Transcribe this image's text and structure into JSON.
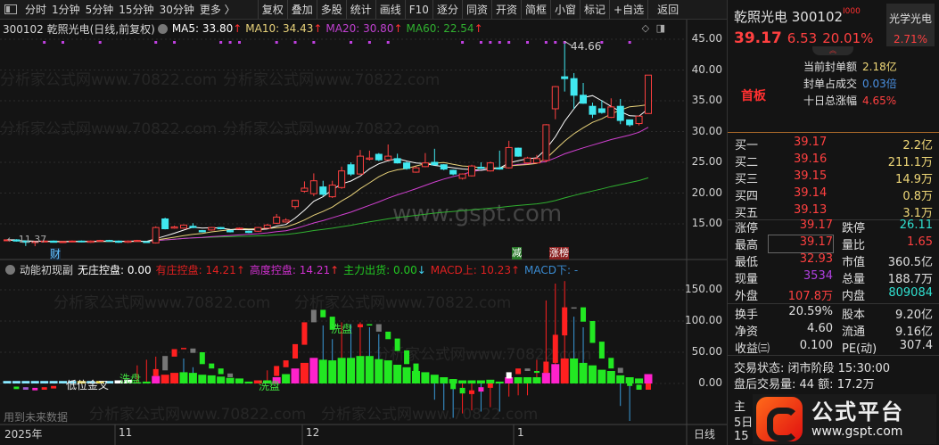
{
  "toolbar": {
    "tabs": [
      "分时",
      "1分钟",
      "5分钟",
      "15分钟",
      "30分钟",
      "更多 〉"
    ],
    "buttons": [
      "复权",
      "叠加",
      "多股",
      "统计",
      "画线",
      "F10",
      "逐分",
      "同资",
      "开资",
      "简框",
      "小窗",
      "标记",
      "+自选",
      "返回"
    ]
  },
  "main_header": {
    "title": "300102 乾照光电(日线,前复权)",
    "ma5": "MA5: 33.80",
    "ma10": "MA10: 34.43",
    "ma20": "MA20: 30.80",
    "ma60": "MA60: 22.54",
    "up_arrow": "↑"
  },
  "indicator_header": {
    "name": "动能初现副",
    "wu": "无庄控盘: 0.00",
    "you": "有庄控盘: 14.21",
    "gao": "高度控盘: 14.21",
    "chu": "主力出货: 0.00",
    "macd_up": "MACD上: 10.23",
    "macd_down": "MACD下: -",
    "up_arrow": "↑",
    "down_arrow": "↓"
  },
  "annotations": {
    "high_label": "44.66",
    "low_label": "← 11.37",
    "cai": "财",
    "jian": "减",
    "zhangbang": "涨榜",
    "dijinjiao": "低位金叉",
    "xipan": "洗盘",
    "future": "用到未来数据",
    "watermark": "分析家公式网www.70822.com",
    "center_watermark": "www.gspt.com"
  },
  "price_axis": [
    "45.00",
    "40.00",
    "35.00",
    "30.00",
    "25.00",
    "20.00",
    "15.00"
  ],
  "ind_axis": [
    "150.00",
    "100.00",
    "50.00",
    "0.00"
  ],
  "x_axis": {
    "labels": [
      "2025年",
      "11",
      "12",
      "1"
    ],
    "period": "日线"
  },
  "quote_panel": {
    "name": "乾照光电 300102",
    "badge": "I000",
    "sector": "光学光电",
    "sector_change": "2.71%",
    "price": "39.17",
    "change": "6.53",
    "change_pct": "20.01%",
    "board_tag": "首板",
    "seal_rows": [
      {
        "label": "当前封单额",
        "value": "2.18亿",
        "color": "#f0d878"
      },
      {
        "label": "封单占成交",
        "value": "0.03倍",
        "color": "#4a90e2"
      },
      {
        "label": "十日总涨幅",
        "value": "4.65%",
        "color": "#ff4040"
      }
    ],
    "bids": [
      {
        "label": "买一",
        "price": "39.17",
        "vol": "2.2亿"
      },
      {
        "label": "买二",
        "price": "39.16",
        "vol": "211.1万"
      },
      {
        "label": "买三",
        "price": "39.15",
        "vol": "14.9万"
      },
      {
        "label": "买四",
        "price": "39.14",
        "vol": "0.8万"
      },
      {
        "label": "买五",
        "price": "39.13",
        "vol": "3.1万"
      }
    ],
    "quotes": [
      {
        "l1": "涨停",
        "v1": "39.17",
        "c1": "#ff4040",
        "l2": "跌停",
        "v2": "26.11",
        "c2": "#30e0d0"
      },
      {
        "l1": "最高",
        "v1": "39.17",
        "c1": "#ff4040",
        "l2": "量比",
        "v2": "1.65",
        "c2": "#ff4040"
      },
      {
        "l1": "最低",
        "v1": "32.93",
        "c1": "#ff4040",
        "l2": "市值",
        "v2": "360.5亿",
        "c2": "#e0e0e0"
      },
      {
        "l1": "现量",
        "v1": "3534",
        "c1": "#b040e0",
        "l2": "总量",
        "v2": "188.7万",
        "c2": "#e0e0e0"
      },
      {
        "l1": "外盘",
        "v1": "107.8万",
        "c1": "#ff4040",
        "l2": "内盘",
        "v2": "809084",
        "c2": "#30e0d0"
      }
    ],
    "fundamentals": [
      {
        "l1": "换手",
        "v1": "20.59%",
        "l2": "股本",
        "v2": "9.20亿"
      },
      {
        "l1": "净资",
        "v1": "4.60",
        "l2": "流通",
        "v2": "9.16亿"
      },
      {
        "l1": "收益㈢",
        "v1": "0.100",
        "l2": "PE(动)",
        "v2": "307.4"
      }
    ],
    "trade_status": "交易状态: 闭市阶段 15:30:00",
    "after_hours": "盘后交易量: 44  额: 17.2万",
    "partial_rows": [
      "主",
      "5日",
      "15"
    ]
  },
  "logo": {
    "name": "公式平台",
    "url": "www.gspt.com"
  },
  "chart_data": {
    "type": "candlestick",
    "price_ylim": [
      11,
      46
    ],
    "indicator_ylim": [
      -65,
      165
    ],
    "colors": {
      "up": "#ff4040",
      "down": "#40e8f0",
      "ma5": "#ffffff",
      "ma10": "#e8d27a",
      "ma20": "#d040d0",
      "ma60": "#30b030"
    },
    "ohlc": [
      [
        12.3,
        12.5,
        12.2,
        12.4
      ],
      [
        12.4,
        12.5,
        12.1,
        12.2
      ],
      [
        12.2,
        12.3,
        11.4,
        12.0
      ],
      [
        12.0,
        12.2,
        11.37,
        12.1
      ],
      [
        12.1,
        12.3,
        12.0,
        12.2
      ],
      [
        12.2,
        12.3,
        12.0,
        12.0
      ],
      [
        12.0,
        12.2,
        11.9,
        12.1
      ],
      [
        12.1,
        12.3,
        12.0,
        12.2
      ],
      [
        12.2,
        12.3,
        12.0,
        12.1
      ],
      [
        12.0,
        12.3,
        11.9,
        12.2
      ],
      [
        12.2,
        12.4,
        12.1,
        12.3
      ],
      [
        12.3,
        12.4,
        12.1,
        12.2
      ],
      [
        12.2,
        12.3,
        11.9,
        12.0
      ],
      [
        12.0,
        12.3,
        11.9,
        12.2
      ],
      [
        12.2,
        12.4,
        12.1,
        12.3
      ],
      [
        12.1,
        12.2,
        11.9,
        12.0
      ],
      [
        11.9,
        14.6,
        11.8,
        14.4
      ],
      [
        15.8,
        16.0,
        14.1,
        14.2
      ],
      [
        14.3,
        14.7,
        14.2,
        14.5
      ],
      [
        14.3,
        14.9,
        14.2,
        14.8
      ],
      [
        14.6,
        15.1,
        14.3,
        14.4
      ],
      [
        13.9,
        14.0,
        13.6,
        13.7
      ],
      [
        14.0,
        14.5,
        13.9,
        14.4
      ],
      [
        14.4,
        14.5,
        14.1,
        14.2
      ],
      [
        13.9,
        14.0,
        13.6,
        13.7
      ],
      [
        14.2,
        14.4,
        14.1,
        14.3
      ],
      [
        13.8,
        13.9,
        13.5,
        13.6
      ],
      [
        13.8,
        14.5,
        13.7,
        14.4
      ],
      [
        14.3,
        15.0,
        14.2,
        14.8
      ],
      [
        15.1,
        16.6,
        15.0,
        16.1
      ],
      [
        15.3,
        15.9,
        15.2,
        15.6
      ],
      [
        17.8,
        18.9,
        17.4,
        18.8
      ],
      [
        20.3,
        21.9,
        20.1,
        20.8
      ],
      [
        19.9,
        23.2,
        19.5,
        22.0
      ],
      [
        21.0,
        22.0,
        19.5,
        19.8
      ],
      [
        19.4,
        22.0,
        19.2,
        21.3
      ],
      [
        20.9,
        24.3,
        20.7,
        23.6
      ],
      [
        24.6,
        25.0,
        22.8,
        23.1
      ],
      [
        23.1,
        27.0,
        23.0,
        26.0
      ],
      [
        25.5,
        26.9,
        25.3,
        25.7
      ],
      [
        26.3,
        26.5,
        25.2,
        25.4
      ],
      [
        25.4,
        27.9,
        25.3,
        26.0
      ],
      [
        25.6,
        26.4,
        24.8,
        24.9
      ],
      [
        24.9,
        25.1,
        23.8,
        24.0
      ],
      [
        23.4,
        24.3,
        23.3,
        24.1
      ],
      [
        24.3,
        26.5,
        24.2,
        24.9
      ],
      [
        25.0,
        27.2,
        24.5,
        24.6
      ],
      [
        24.6,
        24.7,
        23.7,
        23.9
      ],
      [
        23.7,
        23.8,
        22.9,
        23.1
      ],
      [
        22.4,
        23.2,
        22.2,
        23.1
      ],
      [
        22.8,
        24.6,
        22.7,
        24.4
      ],
      [
        24.2,
        25.0,
        23.9,
        24.0
      ],
      [
        23.6,
        25.1,
        23.5,
        24.9
      ],
      [
        24.1,
        26.9,
        23.8,
        23.9
      ],
      [
        24.1,
        28.5,
        24.0,
        27.4
      ],
      [
        27.3,
        27.4,
        25.9,
        26.0
      ],
      [
        24.9,
        25.9,
        24.7,
        25.7
      ],
      [
        24.9,
        26.2,
        24.8,
        25.6
      ],
      [
        25.3,
        31.2,
        25.0,
        31.1
      ],
      [
        33.7,
        37.4,
        32.0,
        37.3
      ],
      [
        38.9,
        44.66,
        36.5,
        38.6
      ],
      [
        38.6,
        39.5,
        33.7,
        35.9
      ],
      [
        35.9,
        37.9,
        34.5,
        34.6
      ],
      [
        34.1,
        34.7,
        32.2,
        32.8
      ],
      [
        33.7,
        35.1,
        32.9,
        33.1
      ],
      [
        32.3,
        35.4,
        32.2,
        34.0
      ],
      [
        34.1,
        35.3,
        31.2,
        31.8
      ],
      [
        31.9,
        31.9,
        30.8,
        31.1
      ],
      [
        31.3,
        32.5,
        31.0,
        32.5
      ],
      [
        32.93,
        39.17,
        32.93,
        39.17
      ]
    ],
    "top_markers": [
      4,
      6,
      10,
      16,
      18,
      23,
      24,
      25,
      29,
      31,
      33,
      37,
      39,
      41,
      49,
      51,
      52,
      53,
      54,
      56,
      58,
      59,
      60,
      64,
      67
    ],
    "marker_color": "#c040e0",
    "palette": {
      "g": "#22e822",
      "r": "#ff2020",
      "m": "#ff22cc",
      "c": "#88e8ff",
      "y": "#f0e050",
      "w": "#ffffff",
      "k": "#777777",
      "p": "#a05cd0",
      "b": "#3a9ad9"
    },
    "histogram": [
      [
        4,
        "c"
      ],
      [
        4,
        "c"
      ],
      [
        4,
        "c"
      ],
      [
        4,
        "c"
      ],
      [
        4,
        "c"
      ],
      [
        4,
        "c"
      ],
      [
        4,
        "c"
      ],
      [
        4,
        "c"
      ],
      [
        4,
        "y"
      ],
      [
        4,
        "c"
      ],
      [
        4,
        "y"
      ],
      [
        4,
        "c"
      ],
      [
        5,
        "w"
      ],
      [
        6,
        "w"
      ],
      [
        2,
        "g"
      ],
      [
        3,
        "g"
      ],
      [
        12,
        "m"
      ],
      [
        14,
        "r"
      ],
      [
        17,
        "r"
      ],
      [
        18,
        "g"
      ],
      [
        17,
        "g"
      ],
      [
        14,
        "g"
      ],
      [
        13,
        "g"
      ],
      [
        11,
        "g"
      ],
      [
        9,
        "g"
      ],
      [
        8,
        "g"
      ],
      [
        3,
        "g"
      ],
      [
        5,
        "r"
      ],
      [
        5,
        "g"
      ],
      [
        10,
        "m"
      ],
      [
        15,
        "g"
      ],
      [
        24,
        "m"
      ],
      [
        33,
        "r"
      ],
      [
        41,
        "m"
      ],
      [
        38,
        "g"
      ],
      [
        37,
        "g"
      ],
      [
        41,
        "g"
      ],
      [
        41,
        "g"
      ],
      [
        44,
        "g"
      ],
      [
        44,
        "g"
      ],
      [
        39,
        "g"
      ],
      [
        37,
        "g"
      ],
      [
        30,
        "g"
      ],
      [
        26,
        "g"
      ],
      [
        20,
        "g"
      ],
      [
        18,
        "g"
      ],
      [
        14,
        "g"
      ],
      [
        10,
        "g"
      ],
      [
        7,
        "g"
      ],
      [
        5,
        "g"
      ],
      [
        5,
        "g"
      ],
      [
        5,
        "g"
      ],
      [
        6,
        "g"
      ],
      [
        3,
        "g"
      ],
      [
        10,
        "m"
      ],
      [
        10,
        "g"
      ],
      [
        10,
        "g"
      ],
      [
        10,
        "g"
      ],
      [
        17,
        "m"
      ],
      [
        31,
        "m"
      ],
      [
        40,
        "r"
      ],
      [
        40,
        "g"
      ],
      [
        33,
        "g"
      ],
      [
        29,
        "g"
      ],
      [
        22,
        "g"
      ],
      [
        20,
        "g"
      ],
      [
        13,
        "g"
      ],
      [
        10,
        "g"
      ],
      [
        8,
        "g"
      ],
      [
        15,
        "m"
      ]
    ],
    "boxes": [
      [
        1,
        -5,
        -9,
        "g"
      ],
      [
        2,
        -6,
        -10,
        "p"
      ],
      [
        3,
        -7,
        -11,
        "m"
      ],
      [
        4,
        -6,
        -10,
        "r"
      ],
      [
        5,
        -4,
        -8,
        "r"
      ],
      [
        16,
        23,
        12,
        "r"
      ],
      [
        17,
        44,
        21,
        "k"
      ],
      [
        18,
        55,
        43,
        "r"
      ],
      [
        19,
        57,
        55,
        "r"
      ],
      [
        20,
        56,
        49,
        "k"
      ],
      [
        21,
        50,
        31,
        "g"
      ],
      [
        22,
        32,
        24,
        "g"
      ],
      [
        23,
        24,
        15,
        "g"
      ],
      [
        24,
        16,
        10,
        "k"
      ],
      [
        29,
        28,
        12,
        "r"
      ],
      [
        30,
        37,
        26,
        "r"
      ],
      [
        31,
        63,
        40,
        "r"
      ],
      [
        32,
        98,
        62,
        "r"
      ],
      [
        33,
        118,
        98,
        "k"
      ],
      [
        34,
        118,
        106,
        "g"
      ],
      [
        35,
        107,
        86,
        "g"
      ],
      [
        38,
        95,
        90,
        "r"
      ],
      [
        39,
        95,
        94,
        "g"
      ],
      [
        40,
        95,
        83,
        "k"
      ],
      [
        41,
        83,
        71,
        "g"
      ],
      [
        42,
        72,
        52,
        "g"
      ],
      [
        43,
        53,
        31,
        "g"
      ],
      [
        44,
        32,
        20,
        "g"
      ],
      [
        48,
        7,
        -9,
        "g"
      ],
      [
        49,
        -7,
        -16,
        "g"
      ],
      [
        50,
        -11,
        -17,
        "r"
      ],
      [
        51,
        -6,
        -13,
        "m"
      ],
      [
        52,
        0,
        -7,
        "r"
      ],
      [
        54,
        18,
        8,
        "w"
      ],
      [
        55,
        24,
        15,
        "r"
      ],
      [
        56,
        24,
        20,
        "k"
      ],
      [
        57,
        20,
        17,
        "g"
      ],
      [
        58,
        35,
        17,
        "r"
      ],
      [
        59,
        78,
        33,
        "r"
      ],
      [
        60,
        122,
        77,
        "r"
      ],
      [
        61,
        122,
        120,
        "k"
      ],
      [
        62,
        122,
        99,
        "g"
      ],
      [
        63,
        100,
        65,
        "g"
      ],
      [
        64,
        67,
        40,
        "g"
      ],
      [
        65,
        41,
        24,
        "g"
      ],
      [
        66,
        25,
        17,
        "k"
      ],
      [
        67,
        10,
        -4,
        "g"
      ],
      [
        68,
        -2,
        -10,
        "g"
      ],
      [
        69,
        0,
        -10,
        "r"
      ]
    ],
    "lines": [
      [
        19,
        0,
        40,
        "b"
      ],
      [
        20,
        0,
        26,
        "b"
      ],
      [
        16,
        0,
        43,
        "r"
      ],
      [
        15,
        0,
        38,
        "r"
      ],
      [
        14,
        0,
        29,
        "r"
      ],
      [
        28,
        0,
        21,
        "r"
      ],
      [
        34,
        0,
        93,
        "b"
      ],
      [
        35,
        0,
        71,
        "b"
      ],
      [
        36,
        0,
        98,
        "r"
      ],
      [
        37,
        0,
        95,
        "b"
      ],
      [
        38,
        0,
        98,
        "r"
      ],
      [
        39,
        0,
        90,
        "b"
      ],
      [
        40,
        0,
        79,
        "b"
      ],
      [
        46,
        0,
        -26,
        "b"
      ],
      [
        47,
        0,
        -43,
        "b"
      ],
      [
        48,
        0,
        -55,
        "b"
      ],
      [
        49,
        0,
        -48,
        "r"
      ],
      [
        50,
        0,
        -43,
        "r"
      ],
      [
        51,
        0,
        -45,
        "b"
      ],
      [
        52,
        0,
        -38,
        "r"
      ],
      [
        53,
        0,
        -45,
        "b"
      ],
      [
        54,
        0,
        -21,
        "r"
      ],
      [
        55,
        0,
        -19,
        "r"
      ],
      [
        56,
        0,
        -19,
        "r"
      ],
      [
        57,
        0,
        38,
        "r"
      ],
      [
        58,
        0,
        133,
        "r"
      ],
      [
        59,
        0,
        160,
        "r"
      ],
      [
        60,
        0,
        164,
        "r"
      ],
      [
        61,
        0,
        107,
        "b"
      ],
      [
        62,
        0,
        90,
        "b"
      ],
      [
        66,
        0,
        -36,
        "b"
      ],
      [
        67,
        0,
        -60,
        "b"
      ]
    ]
  }
}
